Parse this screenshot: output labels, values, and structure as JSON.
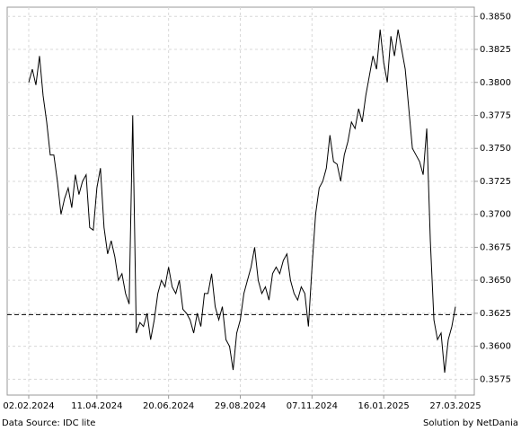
{
  "chart_data": {
    "type": "line",
    "categories": [
      "02.02.2024",
      null,
      null,
      null,
      null,
      null,
      null,
      null,
      null,
      null,
      null,
      null,
      null,
      null,
      null,
      null,
      null,
      null,
      null,
      "11.04.2024",
      null,
      null,
      null,
      null,
      null,
      null,
      null,
      null,
      null,
      null,
      null,
      null,
      null,
      null,
      null,
      null,
      null,
      null,
      null,
      "20.06.2024",
      null,
      null,
      null,
      null,
      null,
      null,
      null,
      null,
      null,
      null,
      null,
      null,
      null,
      null,
      null,
      null,
      null,
      null,
      null,
      "29.08.2024",
      null,
      null,
      null,
      null,
      null,
      null,
      null,
      null,
      null,
      null,
      null,
      null,
      null,
      null,
      null,
      null,
      null,
      null,
      null,
      "07.11.2024",
      null,
      null,
      null,
      null,
      null,
      null,
      null,
      null,
      null,
      null,
      null,
      null,
      null,
      null,
      null,
      null,
      null,
      null,
      null,
      "16.01.2025",
      null,
      null,
      null,
      null,
      null,
      null,
      null,
      null,
      null,
      null,
      null,
      null,
      null,
      null,
      null,
      null,
      null,
      null,
      null,
      "27.03.2025"
    ],
    "values": [
      0.38,
      0.381,
      0.3798,
      0.382,
      0.379,
      0.377,
      0.3745,
      0.3745,
      0.3725,
      0.37,
      0.3712,
      0.372,
      0.3705,
      0.373,
      0.3715,
      0.3725,
      0.373,
      0.369,
      0.3688,
      0.372,
      0.3735,
      0.369,
      0.367,
      0.368,
      0.3668,
      0.365,
      0.3655,
      0.364,
      0.3632,
      0.3775,
      0.361,
      0.3618,
      0.3615,
      0.3625,
      0.3605,
      0.362,
      0.364,
      0.365,
      0.3645,
      0.366,
      0.3645,
      0.364,
      0.365,
      0.3628,
      0.3625,
      0.362,
      0.361,
      0.3625,
      0.3615,
      0.364,
      0.364,
      0.3655,
      0.363,
      0.362,
      0.363,
      0.3605,
      0.36,
      0.3582,
      0.361,
      0.362,
      0.364,
      0.365,
      0.366,
      0.3675,
      0.365,
      0.364,
      0.3645,
      0.3635,
      0.3655,
      0.366,
      0.3655,
      0.3665,
      0.367,
      0.365,
      0.364,
      0.3635,
      0.3645,
      0.364,
      0.3615,
      0.366,
      0.37,
      0.372,
      0.3725,
      0.3735,
      0.376,
      0.374,
      0.3738,
      0.3725,
      0.3745,
      0.3755,
      0.377,
      0.3765,
      0.378,
      0.377,
      0.379,
      0.3805,
      0.382,
      0.381,
      0.384,
      0.3815,
      0.38,
      0.3835,
      0.382,
      0.384,
      0.3825,
      0.381,
      0.378,
      0.375,
      0.3745,
      0.374,
      0.373,
      0.3765,
      0.368,
      0.362,
      0.3605,
      0.361,
      0.358,
      0.3605,
      0.3615,
      0.363
    ],
    "color": "#000000",
    "reference_line": 0.3624,
    "ylim": [
      0.3563,
      0.3857
    ],
    "yticks": [
      {
        "value": 0.385,
        "label": "0.3850"
      },
      0.3825,
      {
        "value": 0.38,
        "label": "0.3800"
      },
      0.3775,
      {
        "value": 0.375,
        "label": "0.3750"
      },
      0.3725,
      {
        "value": 0.37,
        "label": "0.3700"
      },
      0.3675,
      {
        "value": 0.365,
        "label": "0.3650"
      },
      0.3625,
      {
        "value": 0.36,
        "label": "0.3600"
      },
      0.3575
    ],
    "grid": true,
    "source": "Data Source: IDC lite",
    "credit": "Solution by NetDania"
  }
}
